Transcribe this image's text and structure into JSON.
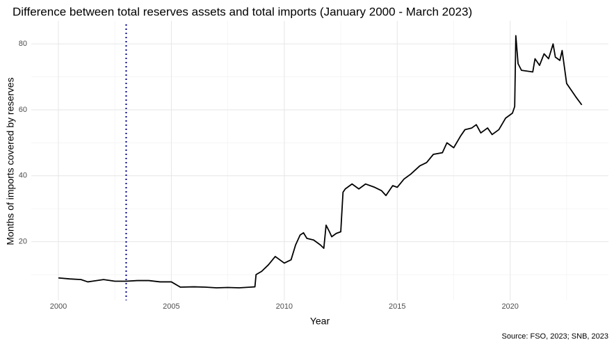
{
  "chart_data": {
    "type": "line",
    "title": "Difference between total reserves assets and total imports (January 2000 - March 2023)",
    "x_label": "Year",
    "y_label": "Months of imports covered by reserves",
    "caption": "Source: FSO, 2023; SNB, 2023",
    "x": [
      2000.0,
      2000.5,
      2001.0,
      2001.3,
      2001.5,
      2002.0,
      2002.5,
      2003.0,
      2003.5,
      2004.0,
      2004.5,
      2005.0,
      2005.4,
      2006.0,
      2006.5,
      2007.0,
      2007.5,
      2008.0,
      2008.5,
      2008.7,
      2008.75,
      2009.0,
      2009.3,
      2009.6,
      2009.9,
      2010.0,
      2010.3,
      2010.5,
      2010.7,
      2010.85,
      2011.0,
      2011.3,
      2011.6,
      2011.75,
      2011.85,
      2012.0,
      2012.1,
      2012.3,
      2012.5,
      2012.6,
      2012.7,
      2013.0,
      2013.3,
      2013.6,
      2014.0,
      2014.3,
      2014.5,
      2014.8,
      2015.0,
      2015.3,
      2015.6,
      2016.0,
      2016.3,
      2016.6,
      2017.0,
      2017.2,
      2017.5,
      2017.8,
      2018.0,
      2018.3,
      2018.5,
      2018.7,
      2019.0,
      2019.2,
      2019.5,
      2019.8,
      2020.0,
      2020.1,
      2020.2,
      2020.25,
      2020.35,
      2020.5,
      2021.0,
      2021.1,
      2021.3,
      2021.5,
      2021.7,
      2021.9,
      2022.0,
      2022.2,
      2022.3,
      2022.5,
      2022.7,
      2022.9,
      2023.17
    ],
    "series": [
      {
        "color": "#000000",
        "values": [
          9,
          8.7,
          8.5,
          7.8,
          8,
          8.5,
          8,
          8,
          8.2,
          8.2,
          7.8,
          7.8,
          6.2,
          6.3,
          6.2,
          6,
          6.1,
          6,
          6.2,
          6.3,
          10,
          11,
          13,
          15.5,
          14,
          13.5,
          14.5,
          19,
          22,
          22.7,
          21,
          20.5,
          19,
          18,
          25,
          23,
          21.5,
          22.5,
          23,
          35,
          36,
          37.5,
          36,
          37.5,
          36.5,
          35.5,
          34,
          37,
          36.5,
          39,
          40.5,
          43,
          44,
          46.5,
          47,
          50,
          48.5,
          52,
          54,
          54.5,
          55.5,
          53,
          54.5,
          52.5,
          54,
          57.5,
          58.5,
          59,
          61,
          82.5,
          74,
          72,
          71.5,
          75.5,
          73.5,
          77,
          75.5,
          80,
          76,
          75,
          78,
          68,
          66,
          64,
          61.5
        ]
      }
    ],
    "vline": {
      "x": 2003,
      "color": "#00008b"
    },
    "xlim": [
      1998.8,
      2024.35
    ],
    "ylim": [
      2.2,
      87
    ],
    "xticks": [
      2000,
      2005,
      2010,
      2015,
      2020
    ],
    "yticks": [
      20,
      40,
      60,
      80
    ],
    "xminor": [
      2002.5,
      2007.5,
      2012.5,
      2017.5,
      2022.5
    ],
    "yminor": [
      10,
      30,
      50,
      70
    ],
    "grid": true
  }
}
